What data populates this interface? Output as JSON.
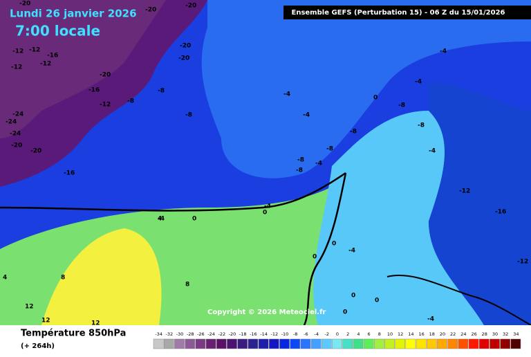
{
  "header": {
    "date": "Lundi 26 janvier 2026",
    "time": "7:00 locale",
    "run": "Ensemble GEFS  (Perturbation 15)  -  06 Z du 15/01/2026"
  },
  "copyright": "Copyright © 2026 Meteociel.fr",
  "footer": {
    "title": "Température 850hPa",
    "lead": "(+ 264h)"
  },
  "map_labels": [
    -20,
    -20,
    -20,
    -12,
    -12,
    -16,
    -12,
    -12,
    -20,
    -20,
    -20,
    -16,
    -8,
    -8,
    -12,
    -24,
    -24,
    -24,
    -20,
    -20,
    -16,
    -8,
    -4,
    -4,
    -8,
    -8,
    -8,
    -8,
    -4,
    -4,
    0,
    -4,
    -4,
    -4,
    0,
    -8,
    -8,
    -4,
    -12,
    -16,
    -12,
    4,
    0,
    -4,
    0,
    0,
    8,
    4,
    8,
    12,
    12,
    12,
    0,
    0,
    0,
    -4
  ],
  "legend": {
    "labels": [
      -34,
      -32,
      -30,
      -28,
      -26,
      -24,
      -22,
      -20,
      -18,
      -16,
      -14,
      -12,
      -10,
      -8,
      -6,
      -4,
      -2,
      0,
      2,
      4,
      6,
      8,
      10,
      12,
      14,
      16,
      18,
      20,
      22,
      24,
      26,
      28,
      30,
      32,
      34
    ],
    "colors": [
      "#c8c8c8",
      "#a8a8a8",
      "#a07aa8",
      "#8c5a96",
      "#7a3a84",
      "#6a2070",
      "#5a1266",
      "#4a1470",
      "#3a1c80",
      "#2a2490",
      "#1c20a8",
      "#1418c4",
      "#0828e0",
      "#0a48f8",
      "#2a74ff",
      "#44a0ff",
      "#5ccaff",
      "#7ae8f0",
      "#48e0c4",
      "#40e088",
      "#60ee58",
      "#a0f040",
      "#c4f020",
      "#e2f400",
      "#ffff00",
      "#ffe400",
      "#ffc800",
      "#ffa800",
      "#ff8400",
      "#ff5000",
      "#ff1800",
      "#e00000",
      "#c00000",
      "#900000",
      "#500000"
    ]
  }
}
